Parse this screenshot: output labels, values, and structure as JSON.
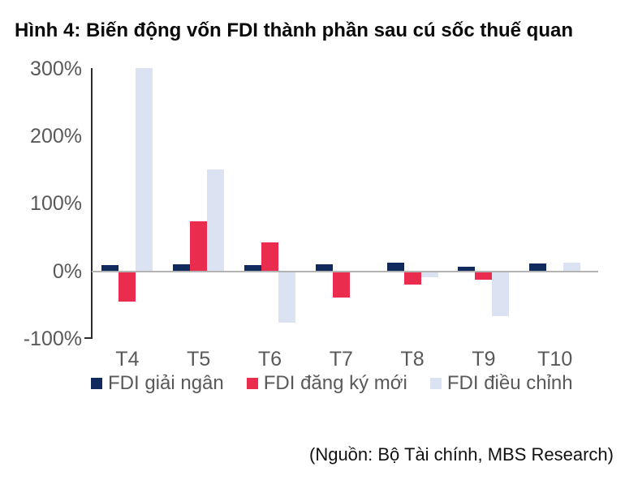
{
  "title": "Hình 4: Biến động vốn FDI thành phần sau cú sốc thuế quan",
  "source": "(Nguồn: Bộ Tài chính, MBS Research)",
  "colors": {
    "title_text": "#0a0a0a",
    "axis_label_text": "#595959",
    "axis_line": "#2b2b2b",
    "zero_line": "#b3b3b3",
    "background": "#ffffff",
    "series_navy": "#112a5e",
    "series_red": "#ea2c4f",
    "series_lightblue": "#dbe3f2"
  },
  "chart_data": {
    "type": "bar",
    "categories": [
      "T4",
      "T5",
      "T6",
      "T7",
      "T8",
      "T9",
      "T10"
    ],
    "series": [
      {
        "name": "FDI giải ngân",
        "color": "#112a5e",
        "values": [
          8,
          9,
          8,
          10,
          12,
          6,
          11
        ]
      },
      {
        "name": "FDI đăng ký mới",
        "color": "#ea2c4f",
        "values": [
          -45,
          73,
          42,
          -40,
          -20,
          -13,
          0
        ]
      },
      {
        "name": "FDI điều chỉnh",
        "color": "#dbe3f2",
        "values": [
          300,
          150,
          -77,
          0,
          -10,
          -67,
          12
        ]
      }
    ],
    "yticks": [
      300,
      200,
      100,
      0,
      -100
    ],
    "ytick_labels": [
      "300%",
      "200%",
      "100%",
      "0%",
      "-100%"
    ],
    "ylim": [
      -100,
      300
    ],
    "xlabel": "",
    "ylabel": "",
    "grid": false,
    "legend_position": "bottom"
  }
}
